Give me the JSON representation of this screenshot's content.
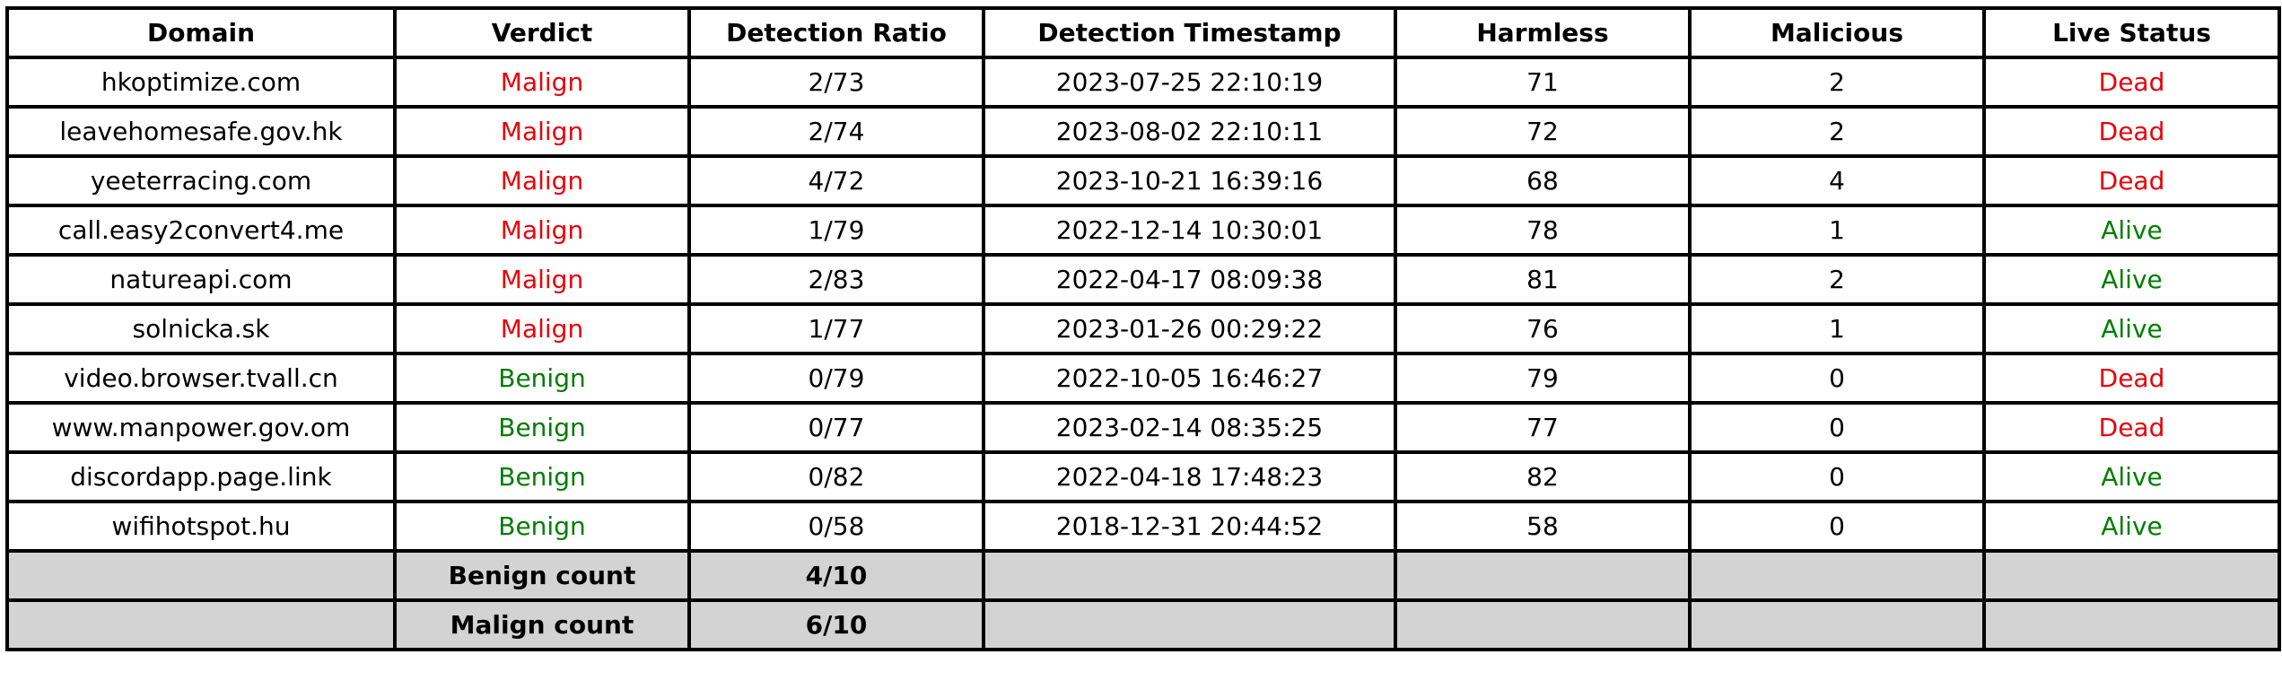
{
  "colors": {
    "malign": "#e8000b",
    "benign": "#007d00",
    "dead": "#e8000b",
    "alive": "#007d00",
    "summary_bg": "#d3d3d3",
    "border": "#000000"
  },
  "table": {
    "headers": [
      "Domain",
      "Verdict",
      "Detection Ratio",
      "Detection Timestamp",
      "Harmless",
      "Malicious",
      "Live Status"
    ],
    "rows": [
      {
        "domain": "hkoptimize.com",
        "verdict": "Malign",
        "ratio": "2/73",
        "timestamp": "2023-07-25 22:10:19",
        "harmless": "71",
        "malicious": "2",
        "status": "Dead"
      },
      {
        "domain": "leavehomesafe.gov.hk",
        "verdict": "Malign",
        "ratio": "2/74",
        "timestamp": "2023-08-02 22:10:11",
        "harmless": "72",
        "malicious": "2",
        "status": "Dead"
      },
      {
        "domain": "yeeterracing.com",
        "verdict": "Malign",
        "ratio": "4/72",
        "timestamp": "2023-10-21 16:39:16",
        "harmless": "68",
        "malicious": "4",
        "status": "Dead"
      },
      {
        "domain": "call.easy2convert4.me",
        "verdict": "Malign",
        "ratio": "1/79",
        "timestamp": "2022-12-14 10:30:01",
        "harmless": "78",
        "malicious": "1",
        "status": "Alive"
      },
      {
        "domain": "natureapi.com",
        "verdict": "Malign",
        "ratio": "2/83",
        "timestamp": "2022-04-17 08:09:38",
        "harmless": "81",
        "malicious": "2",
        "status": "Alive"
      },
      {
        "domain": "solnicka.sk",
        "verdict": "Malign",
        "ratio": "1/77",
        "timestamp": "2023-01-26 00:29:22",
        "harmless": "76",
        "malicious": "1",
        "status": "Alive"
      },
      {
        "domain": "video.browser.tvall.cn",
        "verdict": "Benign",
        "ratio": "0/79",
        "timestamp": "2022-10-05 16:46:27",
        "harmless": "79",
        "malicious": "0",
        "status": "Dead"
      },
      {
        "domain": "www.manpower.gov.om",
        "verdict": "Benign",
        "ratio": "0/77",
        "timestamp": "2023-02-14 08:35:25",
        "harmless": "77",
        "malicious": "0",
        "status": "Dead"
      },
      {
        "domain": "discordapp.page.link",
        "verdict": "Benign",
        "ratio": "0/82",
        "timestamp": "2022-04-18 17:48:23",
        "harmless": "82",
        "malicious": "0",
        "status": "Alive"
      },
      {
        "domain": "wifihotspot.hu",
        "verdict": "Benign",
        "ratio": "0/58",
        "timestamp": "2018-12-31 20:44:52",
        "harmless": "58",
        "malicious": "0",
        "status": "Alive"
      }
    ],
    "summary": [
      {
        "label": "Benign count",
        "value": "4/10"
      },
      {
        "label": "Malign count",
        "value": "6/10"
      }
    ]
  }
}
